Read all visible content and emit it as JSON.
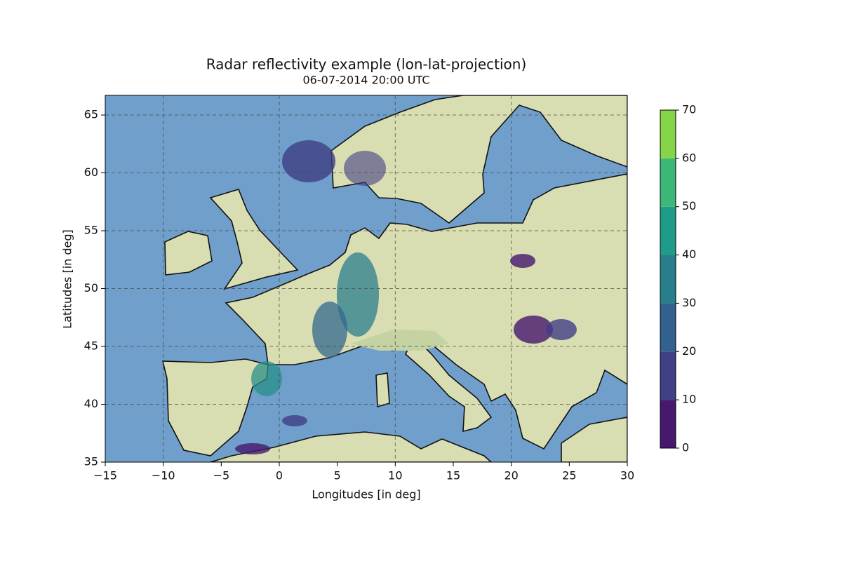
{
  "chart_data": {
    "type": "map",
    "title": "Radar reflectivity example (lon-lat-projection)",
    "subtitle": "06-07-2014 20:00 UTC",
    "xlabel": "Longitudes [in deg]",
    "ylabel": "Latitudes [in deg]",
    "xlim": [
      -15,
      30
    ],
    "ylim": [
      35,
      66.7
    ],
    "xticks": [
      {
        "value": -15,
        "label": "−15"
      },
      {
        "value": -10,
        "label": "−10"
      },
      {
        "value": -5,
        "label": "−5"
      },
      0,
      5,
      10,
      15,
      20,
      25,
      30
    ],
    "yticks": [
      35,
      40,
      45,
      50,
      55,
      60,
      65
    ],
    "gridlines": {
      "lon": [
        -10,
        0,
        10,
        20
      ],
      "lat": [
        40,
        45,
        50,
        55,
        60,
        65
      ]
    },
    "colorbar": {
      "ticks": [
        0,
        10,
        20,
        30,
        40,
        50,
        60,
        70
      ],
      "colors": [
        "#46186e",
        "#413f86",
        "#33618d",
        "#277f8e",
        "#1f9b8a",
        "#3bb877",
        "#86d549"
      ]
    }
  }
}
